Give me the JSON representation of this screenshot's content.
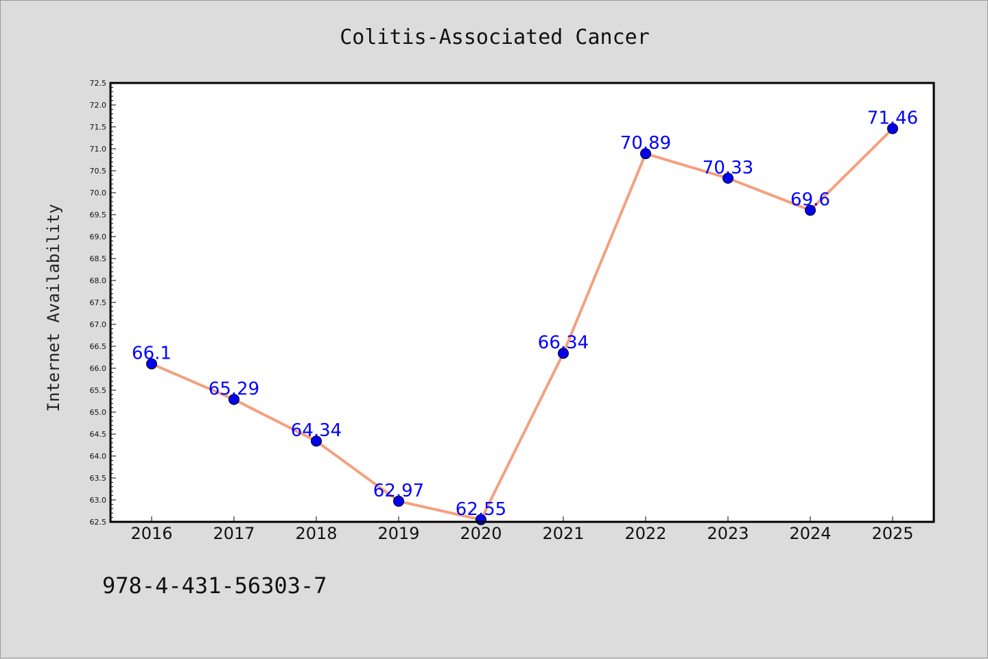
{
  "chart_data": {
    "type": "line",
    "title": "Colitis-Associated Cancer",
    "xlabel": "",
    "ylabel": "Internet Availability",
    "categories": [
      "2016",
      "2017",
      "2018",
      "2019",
      "2020",
      "2021",
      "2022",
      "2023",
      "2024",
      "2025"
    ],
    "series": [
      {
        "values": [
          66.1,
          65.29,
          64.34,
          62.97,
          62.55,
          66.34,
          70.89,
          70.33,
          69.6,
          71.46
        ],
        "data_labels": [
          "66.1",
          "65.29",
          "64.34",
          "62.97",
          "62.55",
          "66.34",
          "70.89",
          "70.33",
          "69.6",
          "71.46"
        ]
      }
    ],
    "ylim": [
      62.5,
      72.5
    ],
    "yticks": [
      "62.5",
      "63.0",
      "63.5",
      "64.0",
      "64.5",
      "65.0",
      "65.5",
      "66.0",
      "66.5",
      "67.0",
      "67.5",
      "68.0",
      "68.5",
      "69.0",
      "69.5",
      "70.0",
      "70.5",
      "71.0",
      "71.5",
      "72.0",
      "72.5"
    ],
    "grid": false,
    "legend": "none",
    "colors": {
      "line": "#f4a07f",
      "marker": "#0000ee",
      "label": "#0000ff",
      "plot_background": "#ffffff",
      "page_background": "#dcdcdc"
    }
  },
  "footer": {
    "isbn": "978-4-431-56303-7"
  }
}
